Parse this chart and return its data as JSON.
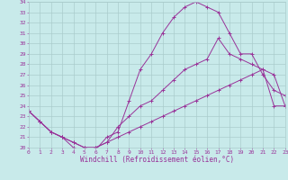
{
  "xlabel": "Windchill (Refroidissement éolien,°C)",
  "bg_color": "#c8eaea",
  "grid_color": "#aacccc",
  "line_color": "#993399",
  "xmin": 0,
  "xmax": 23,
  "ymin": 20,
  "ymax": 34,
  "xtick_fontsize": 4.5,
  "ytick_fontsize": 4.5,
  "xlabel_fontsize": 5.5,
  "line1_x": [
    0,
    1,
    2,
    3,
    4,
    5,
    6,
    7,
    8,
    9,
    10,
    11,
    12,
    13,
    14,
    15,
    16,
    17,
    18,
    19,
    20,
    21,
    22,
    23
  ],
  "line1_y": [
    23.5,
    22.5,
    21.5,
    21.0,
    20.0,
    19.8,
    19.8,
    21.0,
    21.5,
    24.5,
    27.5,
    29.0,
    31.0,
    32.5,
    33.5,
    34.0,
    33.5,
    33.0,
    31.0,
    29.0,
    29.0,
    27.0,
    25.5,
    25.0
  ],
  "line2_x": [
    0,
    1,
    2,
    3,
    4,
    5,
    6,
    7,
    8,
    9,
    10,
    11,
    12,
    13,
    14,
    15,
    16,
    17,
    18,
    19,
    20,
    21,
    22,
    23
  ],
  "line2_y": [
    23.5,
    22.5,
    21.5,
    21.0,
    20.5,
    20.0,
    20.0,
    20.5,
    22.0,
    23.0,
    24.0,
    24.5,
    25.5,
    26.5,
    27.5,
    28.0,
    28.5,
    30.5,
    29.0,
    28.5,
    28.0,
    27.5,
    27.0,
    24.0
  ],
  "line3_x": [
    0,
    1,
    2,
    3,
    4,
    5,
    6,
    7,
    8,
    9,
    10,
    11,
    12,
    13,
    14,
    15,
    16,
    17,
    18,
    19,
    20,
    21,
    22,
    23
  ],
  "line3_y": [
    23.5,
    22.5,
    21.5,
    21.0,
    20.5,
    20.0,
    20.0,
    20.5,
    21.0,
    21.5,
    22.0,
    22.5,
    23.0,
    23.5,
    24.0,
    24.5,
    25.0,
    25.5,
    26.0,
    26.5,
    27.0,
    27.5,
    24.0,
    24.0
  ]
}
